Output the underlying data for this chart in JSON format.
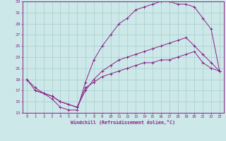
{
  "xlabel": "Windchill (Refroidissement éolien,°C)",
  "xlim": [
    -0.5,
    23.5
  ],
  "ylim": [
    13,
    33
  ],
  "xticks": [
    0,
    1,
    2,
    3,
    4,
    5,
    6,
    7,
    8,
    9,
    10,
    11,
    12,
    13,
    14,
    15,
    16,
    17,
    18,
    19,
    20,
    21,
    22,
    23
  ],
  "yticks": [
    13,
    15,
    17,
    19,
    21,
    23,
    25,
    27,
    29,
    31,
    33
  ],
  "bg_color": "#cce8e8",
  "line_color": "#882288",
  "grid_color": "#aacccc",
  "line1_x": [
    0,
    1,
    2,
    3,
    4,
    5,
    6,
    7,
    8,
    9,
    10,
    11,
    12,
    13,
    14,
    15,
    16,
    17,
    18,
    19,
    20,
    21,
    22,
    23
  ],
  "line1_y": [
    19,
    17.5,
    16.5,
    15.5,
    14.0,
    13.5,
    13.5,
    18.5,
    22.5,
    25.0,
    27.0,
    29.0,
    30.0,
    31.5,
    32.0,
    32.5,
    33.0,
    33.0,
    32.5,
    32.5,
    32.0,
    30.0,
    28.0,
    20.5
  ],
  "line2_x": [
    0,
    1,
    2,
    3,
    4,
    5,
    6,
    7,
    8,
    9,
    10,
    11,
    12,
    13,
    14,
    15,
    16,
    17,
    18,
    19,
    20,
    21,
    22,
    23
  ],
  "line2_y": [
    19,
    17.0,
    16.5,
    16.0,
    15.0,
    14.5,
    14.0,
    17.0,
    19.0,
    20.5,
    21.5,
    22.5,
    23.0,
    23.5,
    24.0,
    24.5,
    25.0,
    25.5,
    26.0,
    26.5,
    25.0,
    23.5,
    22.0,
    20.5
  ],
  "line3_x": [
    1,
    2,
    3,
    4,
    5,
    6,
    7,
    8,
    9,
    10,
    11,
    12,
    13,
    14,
    15,
    16,
    17,
    18,
    19,
    20,
    21,
    22,
    23
  ],
  "line3_y": [
    17.0,
    16.5,
    16.0,
    15.0,
    14.5,
    14.0,
    17.5,
    18.5,
    19.5,
    20.0,
    20.5,
    21.0,
    21.5,
    22.0,
    22.0,
    22.5,
    22.5,
    23.0,
    23.5,
    24.0,
    22.0,
    21.0,
    20.5
  ]
}
